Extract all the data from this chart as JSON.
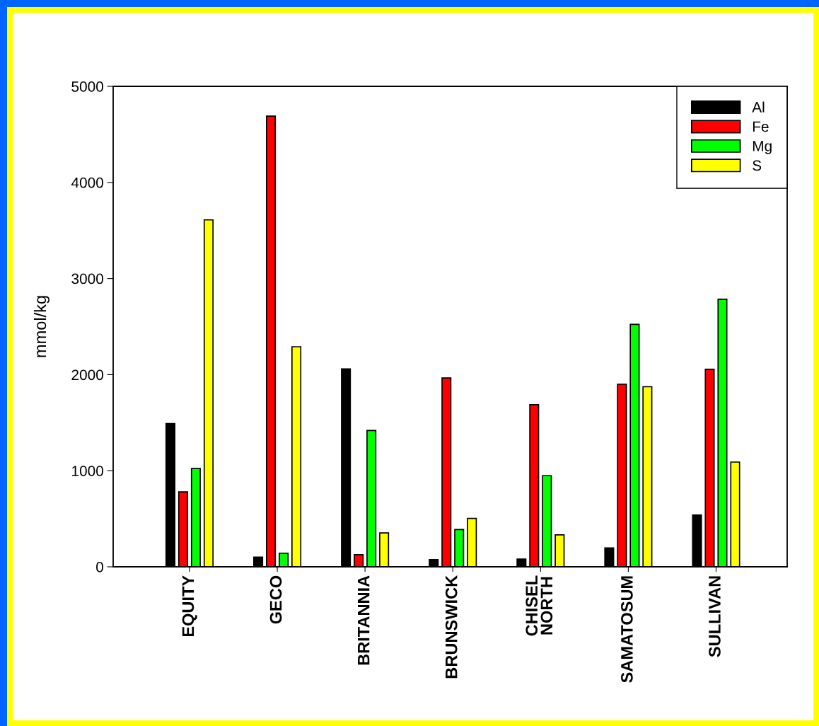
{
  "chart_data": {
    "type": "bar",
    "ylabel": "mmol/kg",
    "categories": [
      "EQUITY",
      "GECO",
      "BRITANNIA",
      "BRUNSWICK",
      "CHISEL\nNORTH",
      "SAMATOSUM",
      "SULLIVAN"
    ],
    "series": [
      {
        "name": "Al",
        "color": "#000000",
        "values": [
          1490,
          100,
          2060,
          74,
          81,
          197,
          539
        ]
      },
      {
        "name": "Fe",
        "color": "#ff0000",
        "values": [
          780,
          4690,
          126,
          1965,
          1687,
          1900,
          2055
        ]
      },
      {
        "name": "Mg",
        "color": "#00ff00",
        "values": [
          1023,
          142,
          1419,
          387,
          948,
          2523,
          2784
        ]
      },
      {
        "name": "S",
        "color": "#ffff00",
        "values": [
          3610,
          2290,
          352,
          503,
          332,
          1874,
          1090
        ]
      }
    ],
    "ylim": [
      0,
      5000
    ],
    "yticks": [
      0,
      1000,
      2000,
      3000,
      4000,
      5000
    ],
    "grid": false,
    "legend": "top right"
  }
}
